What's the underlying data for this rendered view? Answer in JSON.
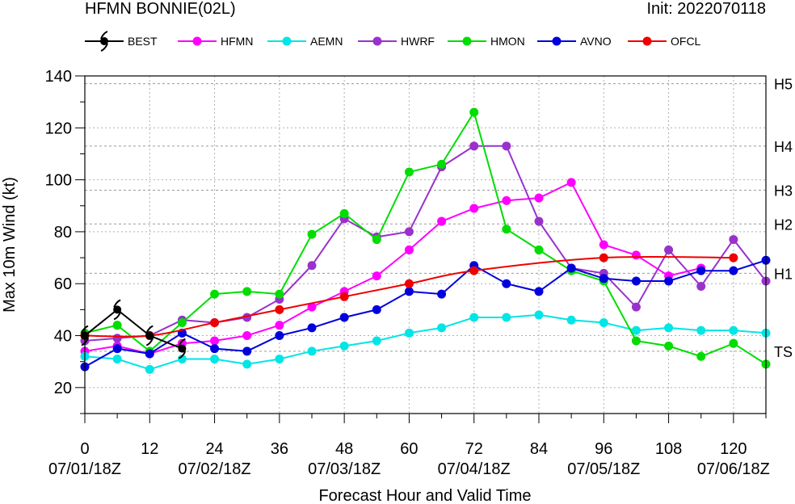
{
  "header": {
    "title": "HFMN BONNIE(02L)",
    "init": "Init: 2022070118"
  },
  "chart_data": {
    "type": "line",
    "xlabel": "Forecast Hour and Valid Time",
    "ylabel": "Max 10m Wind (kt)",
    "xlim": [
      0,
      126
    ],
    "ylim": [
      10,
      140
    ],
    "x_ticks": [
      0,
      12,
      24,
      36,
      48,
      60,
      72,
      84,
      96,
      108,
      120
    ],
    "y_ticks": [
      20,
      40,
      60,
      80,
      100,
      120,
      140
    ],
    "date_labels": [
      {
        "x": 0,
        "label": "07/01/18Z"
      },
      {
        "x": 24,
        "label": "07/02/18Z"
      },
      {
        "x": 48,
        "label": "07/03/18Z"
      },
      {
        "x": 72,
        "label": "07/04/18Z"
      },
      {
        "x": 96,
        "label": "07/05/18Z"
      },
      {
        "x": 120,
        "label": "07/06/18Z"
      }
    ],
    "intensity_categories": [
      {
        "label": "H5",
        "y": 137
      },
      {
        "label": "H4",
        "y": 113
      },
      {
        "label": "H3",
        "y": 96
      },
      {
        "label": "H2",
        "y": 83
      },
      {
        "label": "H1",
        "y": 64
      },
      {
        "label": "TS",
        "y": 34
      }
    ],
    "grid": true,
    "legend_position": "top",
    "series": [
      {
        "name": "BEST",
        "color": "#000000",
        "marker": "hurricane",
        "x": [
          0,
          6,
          12,
          18
        ],
        "y": [
          40,
          50,
          40,
          35
        ]
      },
      {
        "name": "HFMN",
        "color": "#ff00ff",
        "x": [
          0,
          6,
          12,
          18,
          24,
          30,
          36,
          42,
          48,
          54,
          60,
          66,
          72,
          78,
          84,
          90,
          96,
          102,
          108,
          114
        ],
        "y": [
          34,
          36,
          33,
          37,
          38,
          40,
          44,
          51,
          57,
          63,
          73,
          84,
          89,
          92,
          93,
          99,
          75,
          71,
          63,
          66
        ]
      },
      {
        "name": "AEMN",
        "color": "#00e5e5",
        "x": [
          0,
          6,
          12,
          18,
          24,
          30,
          36,
          42,
          48,
          54,
          60,
          66,
          72,
          78,
          84,
          90,
          96,
          102,
          108,
          114,
          120,
          126
        ],
        "y": [
          32,
          31,
          27,
          31,
          31,
          29,
          31,
          34,
          36,
          38,
          41,
          43,
          47,
          47,
          48,
          46,
          45,
          42,
          43,
          42,
          42,
          41
        ]
      },
      {
        "name": "HWRF",
        "color": "#9932cc",
        "x": [
          0,
          6,
          12,
          18,
          24,
          30,
          36,
          42,
          48,
          54,
          60,
          66,
          72,
          78,
          84,
          90,
          96,
          102,
          108,
          114,
          120,
          126
        ],
        "y": [
          38,
          39,
          40,
          46,
          45,
          47,
          54,
          67,
          85,
          78,
          80,
          105,
          113,
          113,
          84,
          66,
          64,
          51,
          73,
          59,
          77,
          61
        ]
      },
      {
        "name": "HMON",
        "color": "#00dd00",
        "x": [
          0,
          6,
          12,
          18,
          24,
          30,
          36,
          42,
          48,
          54,
          60,
          66,
          72,
          78,
          84,
          90,
          96,
          102,
          108,
          114,
          120,
          126
        ],
        "y": [
          41,
          44,
          34,
          45,
          56,
          57,
          56,
          79,
          87,
          77,
          103,
          106,
          126,
          81,
          73,
          65,
          61,
          38,
          36,
          32,
          37,
          29
        ]
      },
      {
        "name": "AVNO",
        "color": "#0000dd",
        "x": [
          0,
          6,
          12,
          18,
          24,
          30,
          36,
          42,
          48,
          54,
          60,
          66,
          72,
          78,
          84,
          90,
          96,
          102,
          108,
          114,
          120,
          126
        ],
        "y": [
          28,
          35,
          33,
          41,
          35,
          34,
          40,
          43,
          47,
          50,
          57,
          56,
          67,
          60,
          57,
          66,
          62,
          61,
          61,
          65,
          65,
          69
        ]
      },
      {
        "name": "OFCL",
        "color": "#ee0000",
        "x": [
          0,
          12,
          24,
          36,
          48,
          60,
          72,
          96,
          120
        ],
        "y": [
          40,
          40,
          45,
          50,
          55,
          60,
          65,
          70,
          70
        ]
      }
    ]
  }
}
